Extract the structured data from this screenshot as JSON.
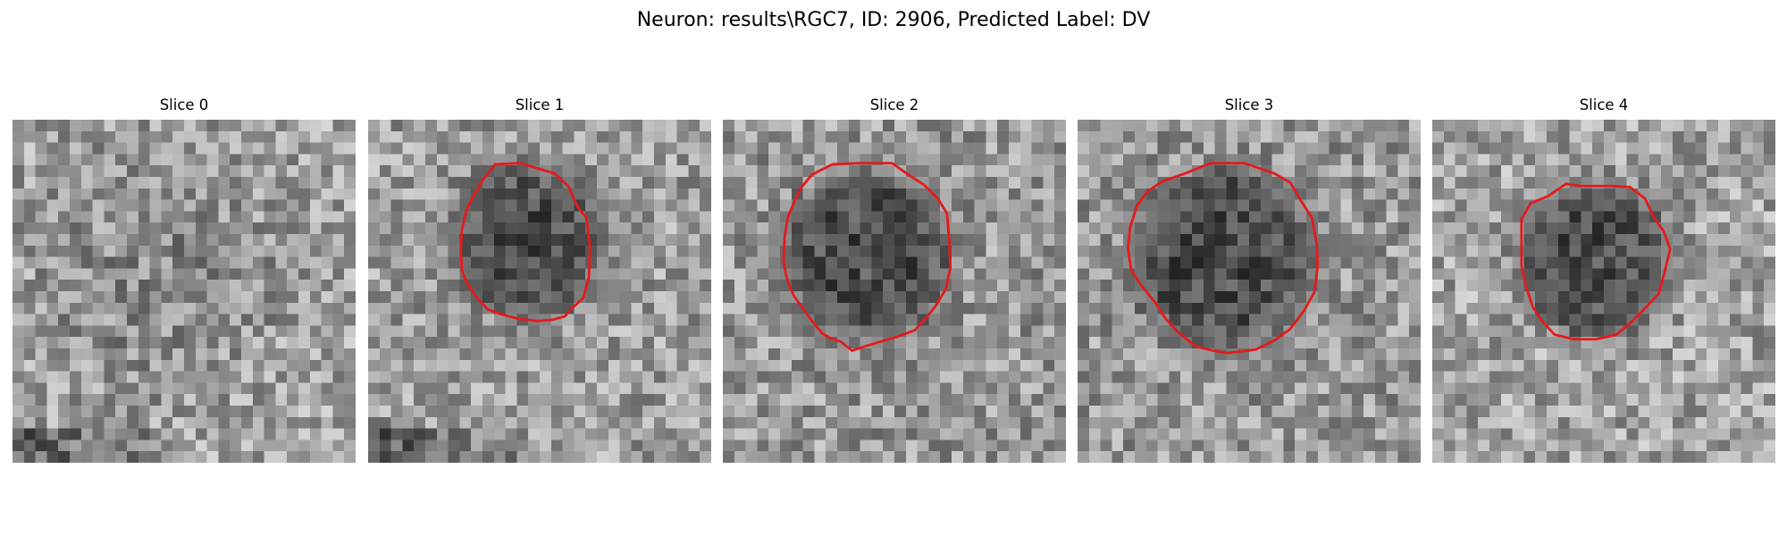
{
  "title": "Neuron: results\\RGC7, ID: 2906, Predicted Label: DV",
  "outline_color": "#e41a1c",
  "panels": [
    {
      "label": "Slice 0",
      "contour": false
    },
    {
      "label": "Slice 1",
      "contour": true
    },
    {
      "label": "Slice 2",
      "contour": true
    },
    {
      "label": "Slice 3",
      "contour": true
    },
    {
      "label": "Slice 4",
      "contour": true
    }
  ]
}
